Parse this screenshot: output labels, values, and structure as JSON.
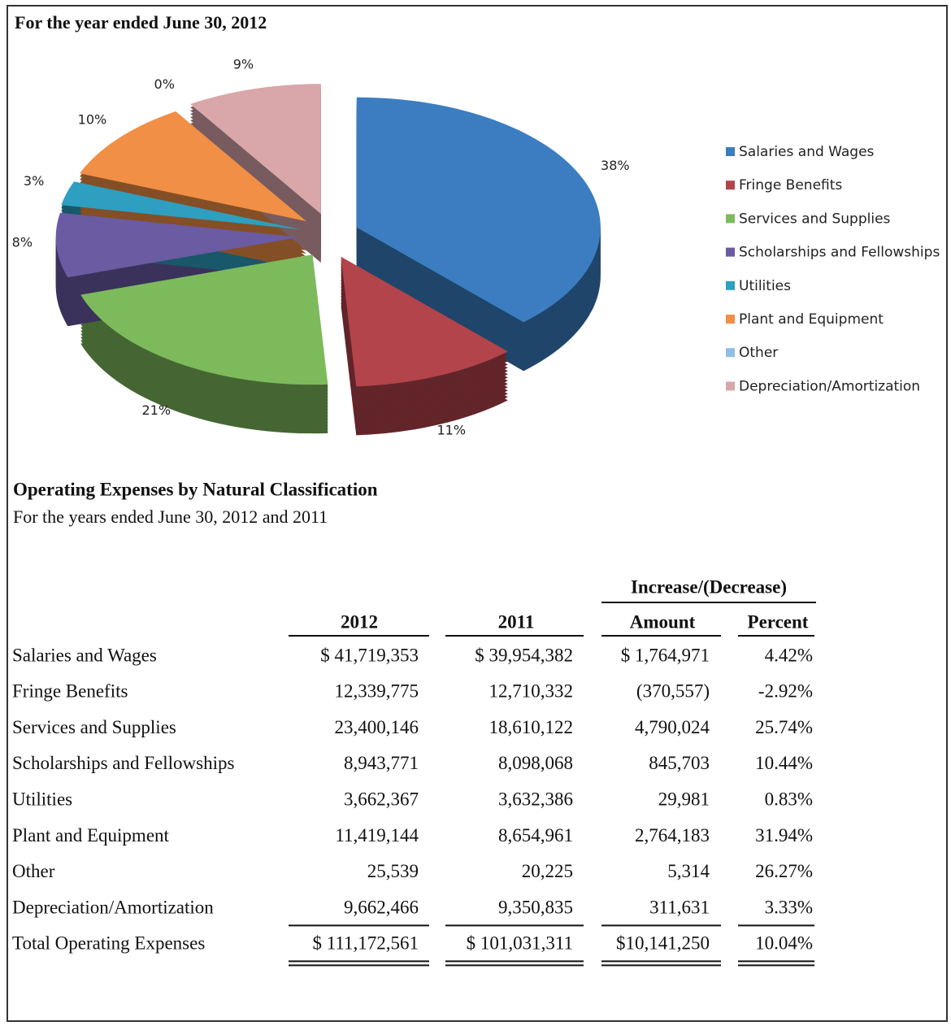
{
  "chart_data": {
    "type": "pie",
    "title": "For the year ended June 30, 2012",
    "categories": [
      "Salaries and Wages",
      "Fringe Benefits",
      "Services and Supplies",
      "Scholarships and Fellowships",
      "Utilities",
      "Plant and Equipment",
      "Other",
      "Depreciation/Amortization"
    ],
    "values": [
      38,
      11,
      21,
      8,
      3,
      10,
      0,
      9
    ],
    "value_labels": [
      "38%",
      "11%",
      "21%",
      "8%",
      "3%",
      "10%",
      "0%",
      "9%"
    ],
    "colors": [
      "#3b7dc0",
      "#b3444c",
      "#7dba5c",
      "#6a5ba3",
      "#2e9fc0",
      "#f08f45",
      "#93bde6",
      "#d9a6aa"
    ],
    "legend": "right"
  },
  "table": {
    "title": "Operating Expenses by Natural Classification",
    "subtitle": "For the years ended June 30, 2012 and 2011",
    "group_header": "Increase/(Decrease)",
    "columns": [
      "2012",
      "2011",
      "Amount",
      "Percent"
    ],
    "rows": [
      {
        "label": "Salaries and Wages",
        "cells": [
          "$   41,719,353",
          "$   39,954,382",
          "$ 1,764,971",
          "4.42%"
        ]
      },
      {
        "label": "Fringe Benefits",
        "cells": [
          "12,339,775",
          "12,710,332",
          "(370,557)",
          "-2.92%"
        ]
      },
      {
        "label": "Services and Supplies",
        "cells": [
          "23,400,146",
          "18,610,122",
          "4,790,024",
          "25.74%"
        ]
      },
      {
        "label": "Scholarships and Fellowships",
        "cells": [
          "8,943,771",
          "8,098,068",
          "845,703",
          "10.44%"
        ]
      },
      {
        "label": "Utilities",
        "cells": [
          "3,662,367",
          "3,632,386",
          "29,981",
          "0.83%"
        ]
      },
      {
        "label": "Plant and Equipment",
        "cells": [
          "11,419,144",
          "8,654,961",
          "2,764,183",
          "31.94%"
        ]
      },
      {
        "label": "Other",
        "cells": [
          "25,539",
          "20,225",
          "5,314",
          "26.27%"
        ]
      },
      {
        "label": "Depreciation/Amortization",
        "cells": [
          "9,662,466",
          "9,350,835",
          "311,631",
          "3.33%"
        ]
      }
    ],
    "total": {
      "label": "Total Operating Expenses",
      "cells": [
        "$ 111,172,561",
        "$ 101,031,311",
        "$10,141,250",
        "10.04%"
      ]
    }
  }
}
